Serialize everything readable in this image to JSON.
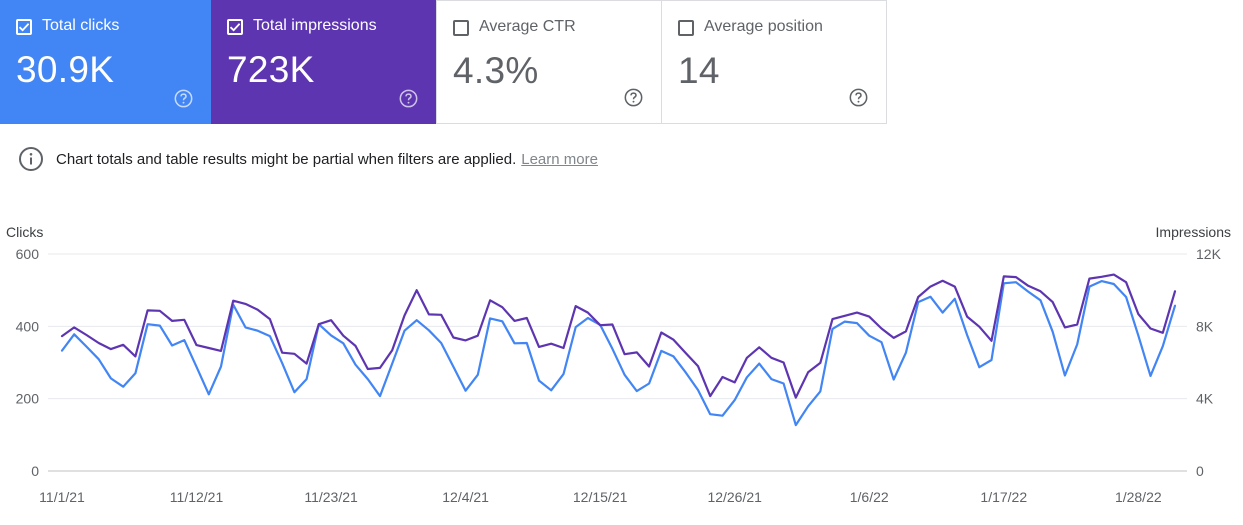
{
  "metrics": [
    {
      "id": "clicks",
      "label": "Total clicks",
      "value": "30.9K",
      "checked": true,
      "color": "#4285f4"
    },
    {
      "id": "impressions",
      "label": "Total impressions",
      "value": "723K",
      "checked": true,
      "color": "#5e35b1"
    },
    {
      "id": "ctr",
      "label": "Average CTR",
      "value": "4.3%",
      "checked": false
    },
    {
      "id": "position",
      "label": "Average position",
      "value": "14",
      "checked": false
    }
  ],
  "notice": {
    "icon": "info-icon",
    "text": "Chart totals and table results might be partial when filters are applied.",
    "link": "Learn more"
  },
  "chart_data": {
    "type": "line",
    "left_axis": {
      "title": "Clicks",
      "ticks": [
        "0",
        "200",
        "400",
        "600"
      ],
      "min": 0,
      "max": 600
    },
    "right_axis": {
      "title": "Impressions",
      "ticks": [
        "0",
        "4K",
        "8K",
        "12K"
      ],
      "min": 0,
      "max": 12000
    },
    "x_ticks": [
      {
        "label": "11/1/21",
        "day": 0
      },
      {
        "label": "11/12/21",
        "day": 11
      },
      {
        "label": "11/23/21",
        "day": 22
      },
      {
        "label": "12/4/21",
        "day": 33
      },
      {
        "label": "12/15/21",
        "day": 44
      },
      {
        "label": "12/26/21",
        "day": 55
      },
      {
        "label": "1/6/22",
        "day": 66
      },
      {
        "label": "1/17/22",
        "day": 77
      },
      {
        "label": "1/28/22",
        "day": 88
      }
    ],
    "grid": true,
    "series": [
      {
        "name": "Clicks",
        "axis": "left",
        "color": "#4285f4",
        "values": [
          333,
          378,
          344,
          309,
          256,
          233,
          270,
          406,
          402,
          347,
          362,
          288,
          212,
          289,
          460,
          397,
          388,
          373,
          298,
          218,
          254,
          406,
          375,
          353,
          294,
          254,
          207,
          297,
          388,
          417,
          389,
          354,
          288,
          222,
          266,
          422,
          414,
          353,
          354,
          250,
          223,
          268,
          398,
          423,
          404,
          338,
          266,
          221,
          242,
          332,
          317,
          272,
          224,
          157,
          153,
          196,
          259,
          297,
          254,
          242,
          127,
          179,
          220,
          393,
          413,
          409,
          374,
          356,
          253,
          327,
          467,
          482,
          438,
          476,
          376,
          287,
          307,
          519,
          522,
          496,
          472,
          385,
          264,
          350,
          510,
          525,
          517,
          481,
          375,
          263,
          345,
          457
        ]
      },
      {
        "name": "Impressions",
        "axis": "right",
        "color": "#5e35b1",
        "values": [
          7460,
          7940,
          7520,
          7080,
          6740,
          6980,
          6340,
          8880,
          8860,
          8300,
          8360,
          6960,
          6800,
          6640,
          9420,
          9240,
          8920,
          8400,
          6540,
          6480,
          5940,
          8120,
          8340,
          7480,
          6920,
          5640,
          5700,
          6680,
          8600,
          10000,
          8660,
          8640,
          7380,
          7220,
          7480,
          9440,
          9060,
          8300,
          8460,
          6860,
          7040,
          6800,
          9120,
          8760,
          8060,
          8100,
          6460,
          6560,
          5780,
          7660,
          7260,
          6520,
          5800,
          4140,
          5200,
          4900,
          6260,
          6840,
          6260,
          6000,
          4060,
          5460,
          5980,
          8400,
          8580,
          8760,
          8540,
          7880,
          7360,
          7720,
          9620,
          10200,
          10520,
          10200,
          8540,
          7980,
          7200,
          10760,
          10720,
          10240,
          9940,
          9340,
          7940,
          8100,
          10640,
          10740,
          10860,
          10440,
          8680,
          7880,
          7640,
          9940
        ]
      }
    ]
  }
}
